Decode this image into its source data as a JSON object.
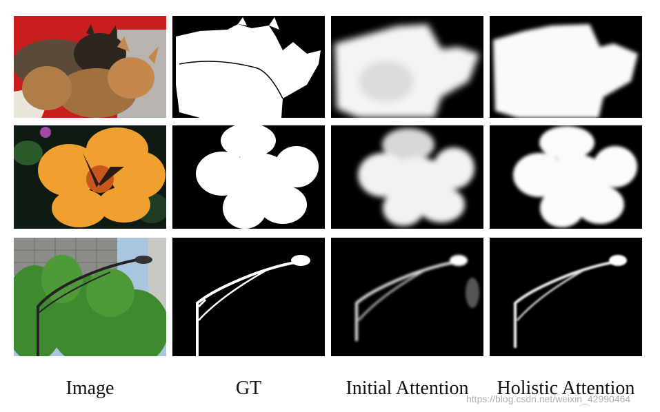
{
  "figure": {
    "column_labels": [
      "Image",
      "GT",
      "Initial Attention",
      "Holistic Attention"
    ],
    "rows": [
      {
        "subject": "cats"
      },
      {
        "subject": "flower"
      },
      {
        "subject": "street-lamp"
      }
    ]
  },
  "watermark": "https://blog.csdn.net/weixin_42990464",
  "colors": {
    "mask_fg": "#ffffff",
    "mask_bg": "#000000",
    "cat_bg_red": "#c81e1e",
    "flower_petal": "#f0a030",
    "foliage": "#3f8a2e",
    "sky": "#a9c6de"
  }
}
